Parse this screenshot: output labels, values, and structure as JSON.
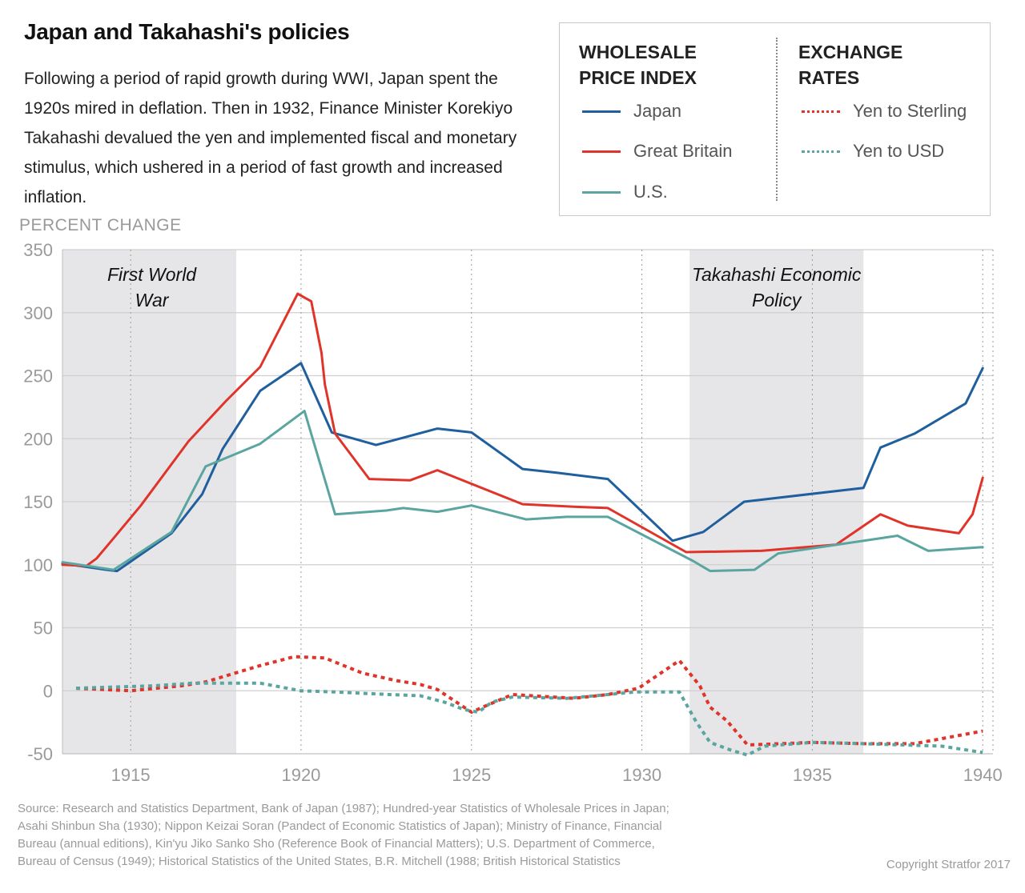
{
  "header": {
    "title": "Japan and Takahashi's policies",
    "description": "Following a period of rapid growth during WWI, Japan spent the 1920s mired in deflation. Then in 1932, Finance Minister Korekiyo Takahashi devalued the yen and implemented fiscal and monetary stimulus, which ushered in a period of fast growth and increased inflation."
  },
  "legend": {
    "wpi_heading": "WHOLESALE PRICE INDEX",
    "fx_heading": "EXCHANGE RATES",
    "items": [
      {
        "label": "Japan",
        "color": "#1f5f9e",
        "style": "solid"
      },
      {
        "label": "Great Britain",
        "color": "#e0342a",
        "style": "solid"
      },
      {
        "label": "U.S.",
        "color": "#5aa5a0",
        "style": "solid"
      },
      {
        "label": "Yen to Sterling",
        "color": "#e0342a",
        "style": "dotted"
      },
      {
        "label": "Yen to USD",
        "color": "#5aa5a0",
        "style": "dotted"
      }
    ]
  },
  "chart_data": {
    "type": "line",
    "ylabel": "PERCENT CHANGE",
    "ylim": [
      -50,
      350
    ],
    "xlim": [
      1913,
      1940.3
    ],
    "yticks": [
      "350",
      "300",
      "250",
      "200",
      "150",
      "100",
      "50",
      "0",
      "-50"
    ],
    "xticks": [
      "1915",
      "1920",
      "1925",
      "1930",
      "1935",
      "1940"
    ],
    "shaded_periods": [
      {
        "label": "First World War",
        "label_lines": [
          "First World",
          "War"
        ],
        "start": 1913,
        "end": 1918.1
      },
      {
        "label": "Takahashi Economic Policy",
        "label_lines": [
          "Takahashi Economic",
          "Policy"
        ],
        "start": 1931.4,
        "end": 1936.5
      }
    ],
    "series": [
      {
        "name": "Japan",
        "style": "solid",
        "color": "#1f5f9e",
        "points": [
          [
            1913,
            101
          ],
          [
            1914.3,
            96
          ],
          [
            1914.6,
            95
          ],
          [
            1916.2,
            125
          ],
          [
            1917.1,
            156
          ],
          [
            1917.7,
            192
          ],
          [
            1918.8,
            238
          ],
          [
            1920,
            260
          ],
          [
            1920.9,
            205
          ],
          [
            1922.2,
            195
          ],
          [
            1924,
            208
          ],
          [
            1925,
            205
          ],
          [
            1926.5,
            176
          ],
          [
            1927.5,
            173
          ],
          [
            1929,
            168
          ],
          [
            1930.9,
            119
          ],
          [
            1931.8,
            126
          ],
          [
            1933,
            150
          ],
          [
            1936.5,
            161
          ],
          [
            1937,
            193
          ],
          [
            1938,
            204
          ],
          [
            1939.5,
            228
          ],
          [
            1940,
            256
          ]
        ]
      },
      {
        "name": "Great Britain",
        "style": "solid",
        "color": "#e0342a",
        "points": [
          [
            1913,
            100
          ],
          [
            1913.7,
            99
          ],
          [
            1914,
            105
          ],
          [
            1914.5,
            121
          ],
          [
            1915.3,
            147
          ],
          [
            1916.7,
            198
          ],
          [
            1917.8,
            230
          ],
          [
            1918.8,
            257
          ],
          [
            1919.9,
            315
          ],
          [
            1920.3,
            309
          ],
          [
            1920.6,
            268
          ],
          [
            1920.7,
            243
          ],
          [
            1921,
            204
          ],
          [
            1922,
            168
          ],
          [
            1923.2,
            167
          ],
          [
            1924,
            175
          ],
          [
            1926.5,
            148
          ],
          [
            1928,
            146
          ],
          [
            1929,
            145
          ],
          [
            1931.3,
            110
          ],
          [
            1933.5,
            111
          ],
          [
            1935.7,
            116
          ],
          [
            1937,
            140
          ],
          [
            1937.8,
            131
          ],
          [
            1939.3,
            125
          ],
          [
            1939.7,
            140
          ],
          [
            1940,
            169
          ]
        ]
      },
      {
        "name": "U.S.",
        "style": "solid",
        "color": "#5aa5a0",
        "points": [
          [
            1913,
            102
          ],
          [
            1914.5,
            96
          ],
          [
            1916.2,
            126
          ],
          [
            1917.2,
            178
          ],
          [
            1918.8,
            196
          ],
          [
            1920.1,
            222
          ],
          [
            1921,
            140
          ],
          [
            1922.5,
            143
          ],
          [
            1923,
            145
          ],
          [
            1924,
            142
          ],
          [
            1925,
            147
          ],
          [
            1926.6,
            136
          ],
          [
            1927.8,
            138
          ],
          [
            1929,
            138
          ],
          [
            1931.5,
            103
          ],
          [
            1932,
            95
          ],
          [
            1933.3,
            96
          ],
          [
            1934,
            109
          ],
          [
            1935.5,
            115
          ],
          [
            1937.5,
            123
          ],
          [
            1938.4,
            111
          ],
          [
            1940,
            114
          ]
        ]
      },
      {
        "name": "Yen to Sterling",
        "style": "dotted",
        "color": "#e0342a",
        "points": [
          [
            1913.4,
            2
          ],
          [
            1915,
            0
          ],
          [
            1916.5,
            4
          ],
          [
            1917.2,
            7
          ],
          [
            1918.8,
            20
          ],
          [
            1919.8,
            27
          ],
          [
            1920.7,
            26
          ],
          [
            1921.8,
            14
          ],
          [
            1922.8,
            8
          ],
          [
            1923.5,
            5
          ],
          [
            1924,
            1
          ],
          [
            1925,
            -17
          ],
          [
            1925.5,
            -11
          ],
          [
            1926.2,
            -3
          ],
          [
            1928,
            -6
          ],
          [
            1929,
            -3
          ],
          [
            1929.9,
            2
          ],
          [
            1931.1,
            24
          ],
          [
            1931.7,
            4
          ],
          [
            1932,
            -13
          ],
          [
            1932.5,
            -24
          ],
          [
            1933.1,
            -43
          ],
          [
            1935,
            -41
          ],
          [
            1936.5,
            -42
          ],
          [
            1938,
            -42
          ],
          [
            1940,
            -32
          ]
        ]
      },
      {
        "name": "Yen to USD",
        "style": "dotted",
        "color": "#5aa5a0",
        "points": [
          [
            1913.4,
            2
          ],
          [
            1915.7,
            4
          ],
          [
            1916.8,
            6
          ],
          [
            1918.8,
            6
          ],
          [
            1920,
            0
          ],
          [
            1921,
            -1
          ],
          [
            1922.6,
            -3
          ],
          [
            1923.5,
            -4
          ],
          [
            1924.2,
            -9
          ],
          [
            1924.8,
            -15
          ],
          [
            1925.2,
            -17
          ],
          [
            1925.6,
            -9
          ],
          [
            1926.2,
            -5
          ],
          [
            1927.8,
            -6
          ],
          [
            1929,
            -3
          ],
          [
            1929.8,
            -1
          ],
          [
            1931.1,
            -1
          ],
          [
            1931.6,
            -25
          ],
          [
            1932,
            -41
          ],
          [
            1932.6,
            -47
          ],
          [
            1933.1,
            -51
          ],
          [
            1933.6,
            -44
          ],
          [
            1935,
            -41
          ],
          [
            1936.5,
            -42
          ],
          [
            1938.8,
            -44
          ],
          [
            1940,
            -49
          ]
        ]
      }
    ]
  },
  "footer": {
    "source_lines": [
      "Source: Research and Statistics Department, Bank of Japan (1987); Hundred-year Statistics of Wholesale Prices in Japan;",
      "Asahi Shinbun Sha (1930); Nippon Keizai Soran (Pandect of Economic Statistics of Japan); Ministry of Finance, Financial",
      "Bureau (annual editions), Kin'yu Jiko Sanko Sho (Reference Book of Financial Matters); U.S. Department of Commerce,",
      "Bureau of Census (1949); Historical Statistics of the United States, B.R. Mitchell (1988; British Historical Statistics"
    ],
    "copyright": "Copyright Stratfor 2017"
  }
}
